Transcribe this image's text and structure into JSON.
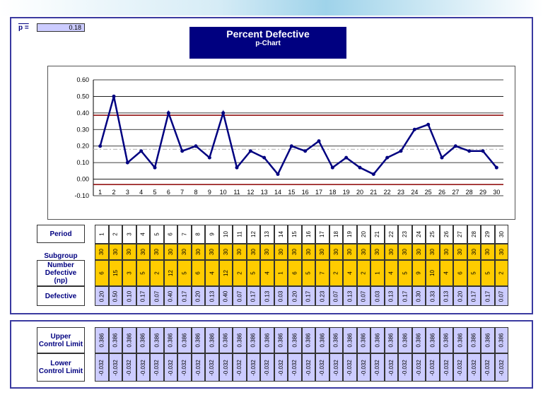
{
  "header": {
    "pbar_label": "p =",
    "pbar_value": "0.18",
    "title": "Percent Defective",
    "subtitle": "p-Chart"
  },
  "row_labels": {
    "period": "Period",
    "subgroup": "Subgroup",
    "np": "Number Defective (np)",
    "defective": "Defective",
    "ucl": "Upper Control Limit",
    "lcl": "Lower Control Limit"
  },
  "colors": {
    "frame": "#3a3aa0",
    "title_bg": "#000080",
    "series": "#000080",
    "limits": "#8b0000",
    "center": "#c0c0c0",
    "yellow": "#ffcc00",
    "lavender": "#ccccff"
  },
  "chart_data": {
    "type": "line",
    "x": [
      1,
      2,
      3,
      4,
      5,
      6,
      7,
      8,
      9,
      10,
      11,
      12,
      13,
      14,
      15,
      16,
      17,
      18,
      19,
      20,
      21,
      22,
      23,
      24,
      25,
      26,
      27,
      28,
      29,
      30
    ],
    "subgroup": [
      30,
      30,
      30,
      30,
      30,
      30,
      30,
      30,
      30,
      30,
      30,
      30,
      30,
      30,
      30,
      30,
      30,
      30,
      30,
      30,
      30,
      30,
      30,
      30,
      30,
      30,
      30,
      30,
      30,
      30
    ],
    "np": [
      6,
      15,
      3,
      5,
      2,
      12,
      5,
      6,
      4,
      12,
      2,
      5,
      4,
      1,
      6,
      5,
      7,
      2,
      4,
      2,
      1,
      4,
      5,
      9,
      10,
      4,
      6,
      5,
      5,
      2
    ],
    "p": [
      "0.20",
      "0.50",
      "0.10",
      "0.17",
      "0.07",
      "0.40",
      "0.17",
      "0.20",
      "0.13",
      "0.40",
      "0.07",
      "0.17",
      "0.13",
      "0.03",
      "0.20",
      "0.17",
      "0.23",
      "0.07",
      "0.13",
      "0.07",
      "0.03",
      "0.13",
      "0.17",
      "0.30",
      "0.33",
      "0.13",
      "0.20",
      "0.17",
      "0.17",
      "0.07"
    ],
    "ucl": "0.386",
    "lcl": "-0.032",
    "center": 0.18,
    "yticks": [
      "0.60",
      "0.50",
      "0.40",
      "0.30",
      "0.20",
      "0.10",
      "0.00",
      "-0.10"
    ],
    "ylim": [
      -0.1,
      0.6
    ],
    "grid": true
  }
}
